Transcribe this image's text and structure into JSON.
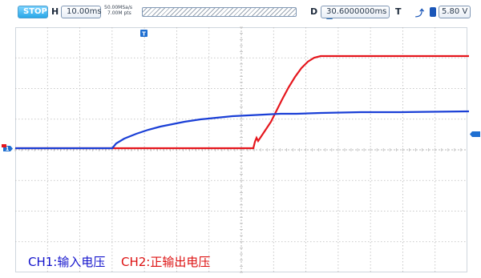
{
  "status_bar": {
    "run_state": "STOP",
    "horizontal_label": "H",
    "time_base": "10.00ms",
    "sample_rate": "50.00MSa/s",
    "memory_depth": "7.00M pts",
    "delay_label": "D",
    "delay": "30.6000000ms",
    "trigger_label": "T",
    "trigger_level": "5.80 V"
  },
  "markers": {
    "trigger_marker": "T",
    "channel1_marker": "1"
  },
  "legend": {
    "ch1": "CH1:输入电压",
    "ch2": "CH2:正输出电压"
  },
  "colors": {
    "ch1": "#1a3fd6",
    "ch2": "#e5161d",
    "grid": "#b9b9b9",
    "marker": "#1f6fd1"
  }
}
